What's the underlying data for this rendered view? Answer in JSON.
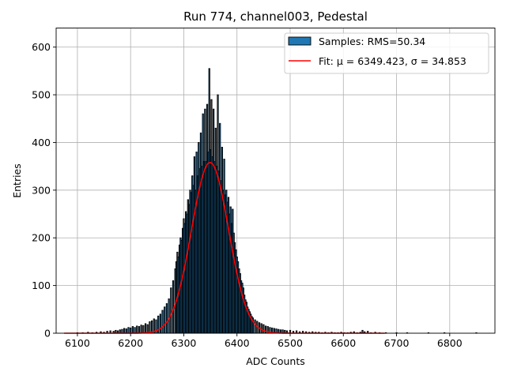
{
  "chart_data": {
    "type": "bar",
    "title": "Run 774, channel003, Pedestal",
    "xlabel": "ADC Counts",
    "ylabel": "Entries",
    "xlim": [
      6060,
      6885
    ],
    "ylim": [
      0,
      640
    ],
    "xticks": [
      6100,
      6200,
      6300,
      6400,
      6500,
      6600,
      6700,
      6800
    ],
    "yticks": [
      0,
      100,
      200,
      300,
      400,
      500,
      600
    ],
    "grid": true,
    "legend_position": "top-right",
    "histogram": {
      "name": "Samples: RMS=50.34",
      "color": "#1f77b4",
      "bin_width": 2,
      "bins": [
        [
          6100,
          1
        ],
        [
          6110,
          1
        ],
        [
          6120,
          2
        ],
        [
          6128,
          1
        ],
        [
          6136,
          2
        ],
        [
          6144,
          3
        ],
        [
          6150,
          2
        ],
        [
          6156,
          4
        ],
        [
          6162,
          5
        ],
        [
          6168,
          4
        ],
        [
          6172,
          6
        ],
        [
          6176,
          5
        ],
        [
          6180,
          7
        ],
        [
          6184,
          8
        ],
        [
          6188,
          10
        ],
        [
          6192,
          9
        ],
        [
          6196,
          12
        ],
        [
          6200,
          11
        ],
        [
          6204,
          14
        ],
        [
          6208,
          12
        ],
        [
          6212,
          15
        ],
        [
          6216,
          14
        ],
        [
          6220,
          17
        ],
        [
          6224,
          16
        ],
        [
          6228,
          20
        ],
        [
          6232,
          18
        ],
        [
          6236,
          24
        ],
        [
          6240,
          26
        ],
        [
          6244,
          30
        ],
        [
          6248,
          28
        ],
        [
          6252,
          36
        ],
        [
          6256,
          40
        ],
        [
          6260,
          48
        ],
        [
          6264,
          55
        ],
        [
          6268,
          62
        ],
        [
          6272,
          72
        ],
        [
          6276,
          95
        ],
        [
          6280,
          110
        ],
        [
          6284,
          135
        ],
        [
          6286,
          150
        ],
        [
          6288,
          170
        ],
        [
          6290,
          160
        ],
        [
          6292,
          185
        ],
        [
          6294,
          200
        ],
        [
          6296,
          195
        ],
        [
          6298,
          220
        ],
        [
          6300,
          240
        ],
        [
          6302,
          230
        ],
        [
          6304,
          255
        ],
        [
          6306,
          250
        ],
        [
          6308,
          280
        ],
        [
          6310,
          270
        ],
        [
          6312,
          300
        ],
        [
          6314,
          295
        ],
        [
          6316,
          330
        ],
        [
          6318,
          310
        ],
        [
          6320,
          370
        ],
        [
          6322,
          300
        ],
        [
          6324,
          380
        ],
        [
          6326,
          330
        ],
        [
          6328,
          400
        ],
        [
          6330,
          345
        ],
        [
          6332,
          420
        ],
        [
          6334,
          350
        ],
        [
          6336,
          460
        ],
        [
          6338,
          360
        ],
        [
          6340,
          470
        ],
        [
          6342,
          360
        ],
        [
          6344,
          480
        ],
        [
          6346,
          380
        ],
        [
          6348,
          555
        ],
        [
          6350,
          385
        ],
        [
          6352,
          490
        ],
        [
          6354,
          370
        ],
        [
          6356,
          470
        ],
        [
          6358,
          360
        ],
        [
          6360,
          430
        ],
        [
          6362,
          350
        ],
        [
          6364,
          500
        ],
        [
          6366,
          340
        ],
        [
          6368,
          440
        ],
        [
          6370,
          320
        ],
        [
          6372,
          390
        ],
        [
          6374,
          300
        ],
        [
          6376,
          365
        ],
        [
          6378,
          290
        ],
        [
          6380,
          300
        ],
        [
          6382,
          275
        ],
        [
          6384,
          285
        ],
        [
          6386,
          250
        ],
        [
          6388,
          265
        ],
        [
          6390,
          230
        ],
        [
          6392,
          260
        ],
        [
          6394,
          210
        ],
        [
          6396,
          190
        ],
        [
          6398,
          175
        ],
        [
          6400,
          160
        ],
        [
          6402,
          150
        ],
        [
          6404,
          135
        ],
        [
          6406,
          125
        ],
        [
          6408,
          110
        ],
        [
          6410,
          105
        ],
        [
          6412,
          95
        ],
        [
          6414,
          80
        ],
        [
          6416,
          70
        ],
        [
          6418,
          65
        ],
        [
          6420,
          55
        ],
        [
          6422,
          50
        ],
        [
          6424,
          45
        ],
        [
          6426,
          40
        ],
        [
          6428,
          35
        ],
        [
          6430,
          32
        ],
        [
          6434,
          28
        ],
        [
          6438,
          25
        ],
        [
          6442,
          22
        ],
        [
          6446,
          20
        ],
        [
          6450,
          18
        ],
        [
          6454,
          15
        ],
        [
          6458,
          14
        ],
        [
          6462,
          12
        ],
        [
          6466,
          11
        ],
        [
          6470,
          10
        ],
        [
          6474,
          9
        ],
        [
          6478,
          8
        ],
        [
          6482,
          7
        ],
        [
          6486,
          7
        ],
        [
          6490,
          6
        ],
        [
          6494,
          5
        ],
        [
          6500,
          6
        ],
        [
          6506,
          4
        ],
        [
          6512,
          5
        ],
        [
          6518,
          3
        ],
        [
          6524,
          4
        ],
        [
          6530,
          3
        ],
        [
          6536,
          2
        ],
        [
          6542,
          3
        ],
        [
          6548,
          2
        ],
        [
          6554,
          2
        ],
        [
          6560,
          1
        ],
        [
          6566,
          2
        ],
        [
          6572,
          1
        ],
        [
          6578,
          2
        ],
        [
          6584,
          1
        ],
        [
          6590,
          1
        ],
        [
          6596,
          2
        ],
        [
          6602,
          1
        ],
        [
          6608,
          1
        ],
        [
          6614,
          2
        ],
        [
          6620,
          3
        ],
        [
          6626,
          1
        ],
        [
          6632,
          2
        ],
        [
          6636,
          6
        ],
        [
          6640,
          3
        ],
        [
          6646,
          4
        ],
        [
          6652,
          1
        ],
        [
          6660,
          2
        ],
        [
          6668,
          1
        ],
        [
          6680,
          1
        ],
        [
          6700,
          1
        ],
        [
          6720,
          1
        ],
        [
          6760,
          1
        ],
        [
          6790,
          1
        ],
        [
          6850,
          1
        ]
      ]
    },
    "fit": {
      "name": "Fit: μ = 6349.423, σ = 34.853",
      "color": "#ff0000",
      "mu": 6349.423,
      "sigma": 34.853,
      "amplitude": 358,
      "x_range": [
        6075,
        6678
      ]
    }
  },
  "legend": {
    "samples_label": "Samples: RMS=50.34",
    "fit_label": "Fit: μ = 6349.423, σ = 34.853"
  }
}
